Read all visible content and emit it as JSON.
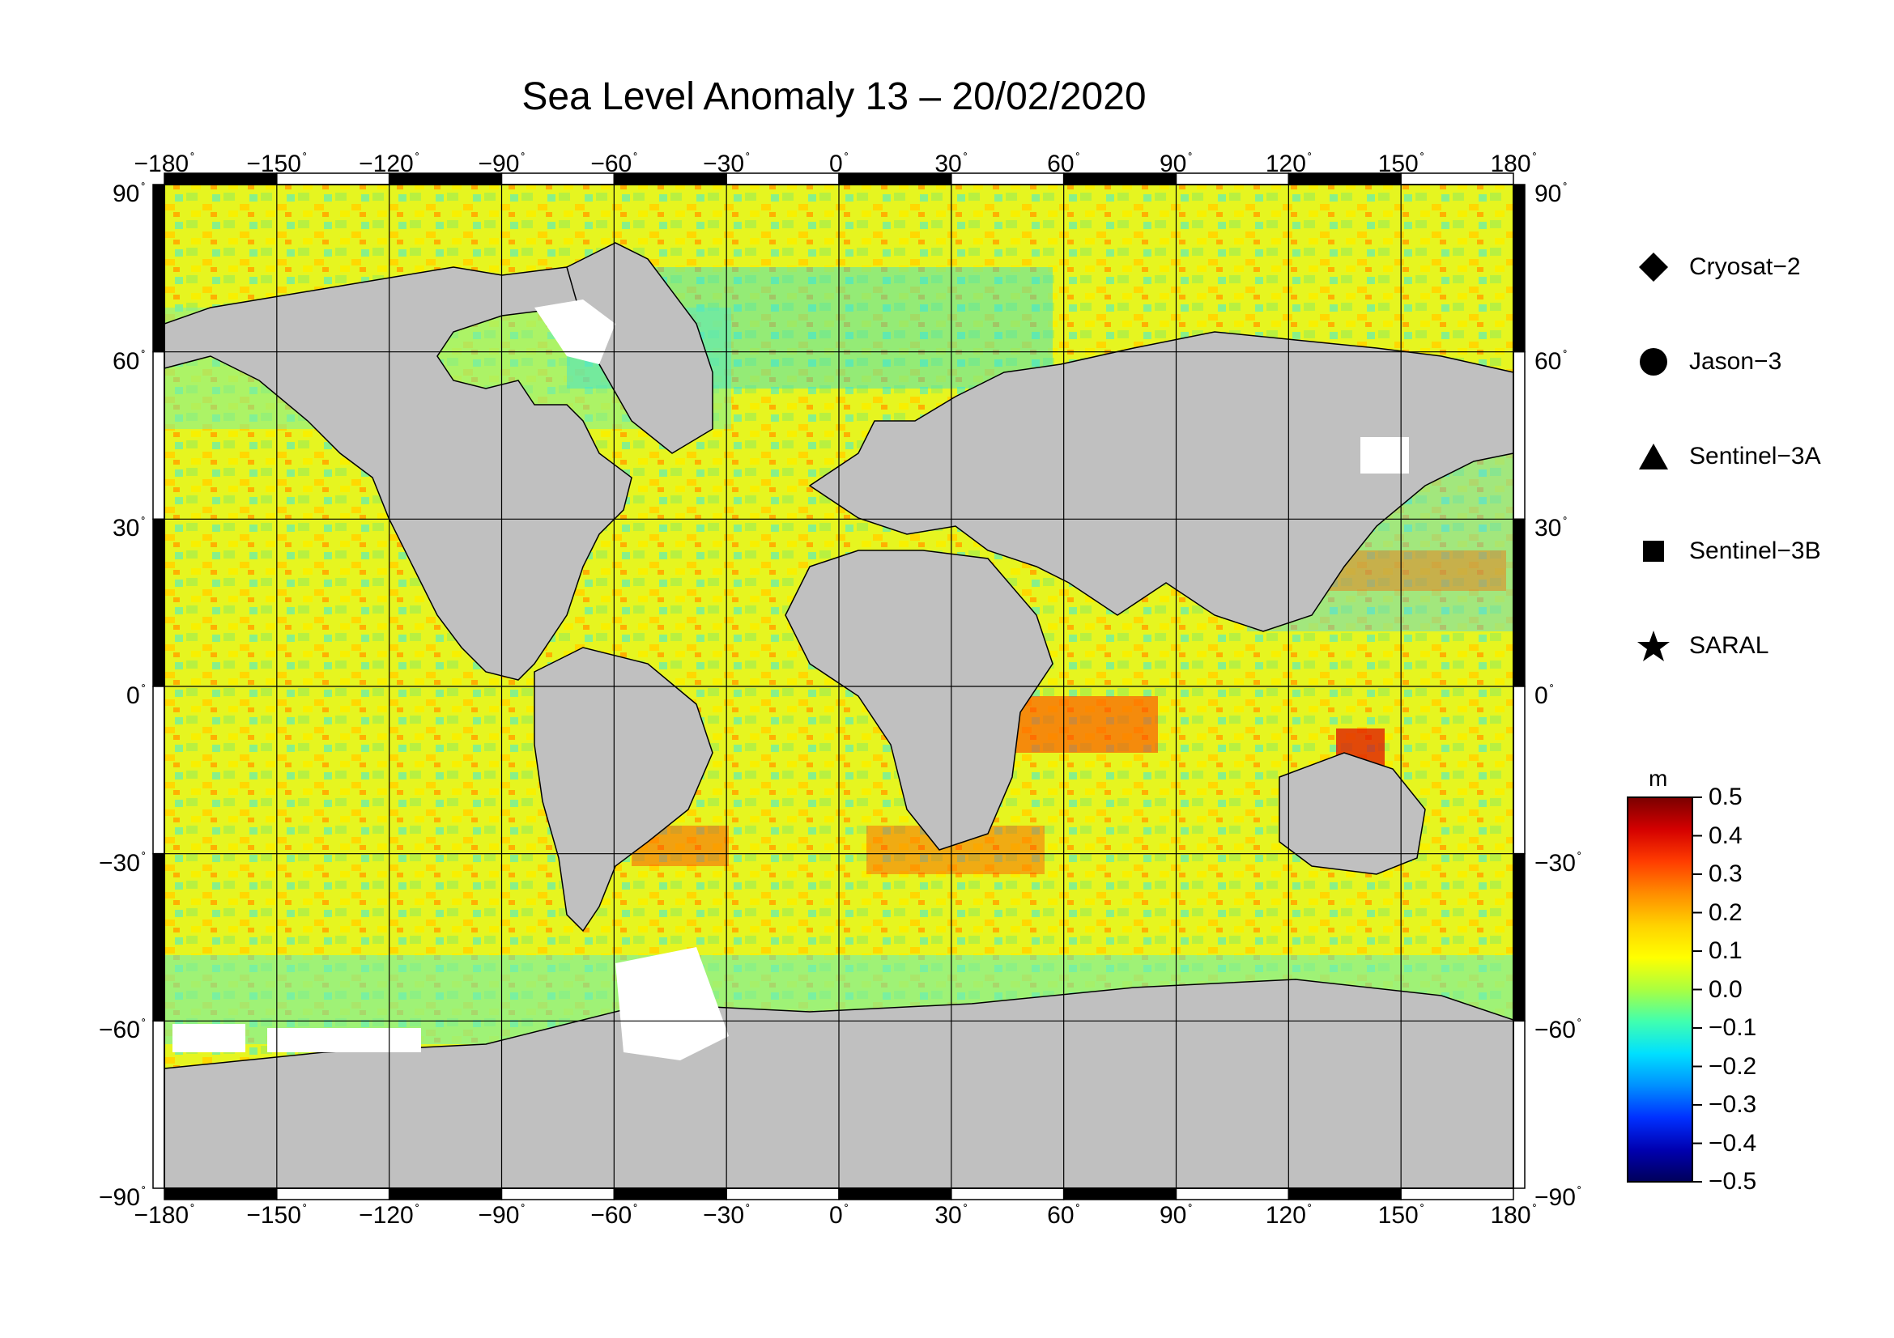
{
  "title": "Sea Level Anomaly 13 – 20/02/2020",
  "map": {
    "projection": "equirectangular",
    "lon_range": [
      -180,
      180
    ],
    "lat_range": [
      -90,
      90
    ],
    "grid_step_lon": 30,
    "grid_step_lat": 30,
    "grid": true,
    "land_color": "#c0c0c0",
    "no_data_color": "#ffffff"
  },
  "axes": {
    "lon_ticks": [
      "−180",
      "−150",
      "−120",
      "−90",
      "−60",
      "−30",
      "0",
      "30",
      "60",
      "90",
      "120",
      "150",
      "180"
    ],
    "lat_ticks": [
      "90",
      "60",
      "30",
      "0",
      "−30",
      "−60",
      "−90"
    ],
    "degree_symbol": "˚"
  },
  "legend": {
    "placement": "right",
    "items": [
      {
        "label": "Cryosat−2",
        "icon": "diamond-icon"
      },
      {
        "label": "Jason−3",
        "icon": "circle-icon"
      },
      {
        "label": "Sentinel−3A",
        "icon": "triangle-icon"
      },
      {
        "label": "Sentinel−3B",
        "icon": "square-icon"
      },
      {
        "label": "SARAL",
        "icon": "star-icon"
      }
    ]
  },
  "colorbar": {
    "unit": "m",
    "range": [
      -0.5,
      0.5
    ],
    "labels": [
      "0.5",
      "0.4",
      "0.3",
      "0.2",
      "0.1",
      "0.0",
      "−0.1",
      "−0.2",
      "−0.3",
      "−0.4",
      "−0.5"
    ],
    "colors": [
      "#7a0000",
      "#d40000",
      "#ff3c00",
      "#ff8c00",
      "#ffd200",
      "#ffff00",
      "#aaff40",
      "#40ffb0",
      "#00e0ff",
      "#0090ff",
      "#0030ff",
      "#0000b0",
      "#00005a"
    ]
  }
}
